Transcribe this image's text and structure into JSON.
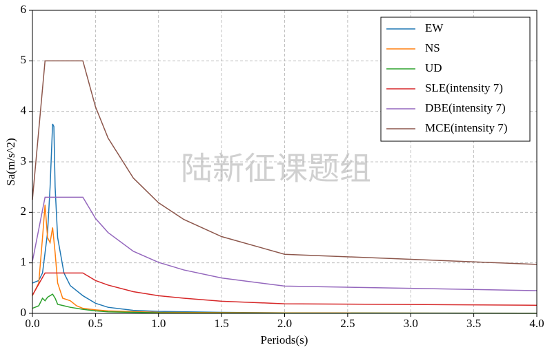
{
  "chart_data": {
    "type": "line",
    "xlabel": "Periods(s)",
    "ylabel": "Sa(m/s^2)",
    "annotation": "陆新征课题组",
    "xlim": [
      0,
      4
    ],
    "ylim": [
      0,
      6
    ],
    "xticks": [
      {
        "value": 0,
        "label": "0.0"
      },
      0.5,
      {
        "value": 1,
        "label": "1.0"
      },
      1.5,
      {
        "value": 2,
        "label": "2.0"
      },
      2.5,
      {
        "value": 3,
        "label": "3.0"
      },
      3.5,
      {
        "value": 4,
        "label": "4.0"
      }
    ],
    "yticks": [
      0,
      1,
      2,
      3,
      4,
      5,
      6
    ],
    "grid": true,
    "legend": "upper right",
    "series": [
      {
        "name": "EW",
        "color": "#1f77b4",
        "x": [
          0,
          0.05,
          0.08,
          0.1,
          0.12,
          0.14,
          0.16,
          0.17,
          0.18,
          0.2,
          0.25,
          0.3,
          0.4,
          0.5,
          0.6,
          0.8,
          1.0,
          1.5,
          2.0,
          3.0,
          4.0
        ],
        "values": [
          0.6,
          0.65,
          0.8,
          1.2,
          1.6,
          2.5,
          3.75,
          3.7,
          2.5,
          1.5,
          0.8,
          0.55,
          0.35,
          0.2,
          0.12,
          0.06,
          0.04,
          0.02,
          0.01,
          0.005,
          0.003
        ]
      },
      {
        "name": "NS",
        "color": "#ff7f0e",
        "x": [
          0,
          0.05,
          0.08,
          0.1,
          0.12,
          0.14,
          0.16,
          0.18,
          0.2,
          0.24,
          0.3,
          0.35,
          0.4,
          0.5,
          0.6,
          1.0,
          2.0,
          4.0
        ],
        "values": [
          0.35,
          0.6,
          1.5,
          2.15,
          1.5,
          1.4,
          1.7,
          1.2,
          0.6,
          0.3,
          0.25,
          0.15,
          0.1,
          0.07,
          0.05,
          0.02,
          0.01,
          0.003
        ]
      },
      {
        "name": "UD",
        "color": "#2ca02c",
        "x": [
          0,
          0.05,
          0.08,
          0.1,
          0.12,
          0.14,
          0.16,
          0.18,
          0.2,
          0.25,
          0.3,
          0.4,
          0.5,
          0.6,
          1.0,
          2.0,
          4.0
        ],
        "values": [
          0.1,
          0.15,
          0.3,
          0.25,
          0.32,
          0.35,
          0.38,
          0.3,
          0.18,
          0.15,
          0.12,
          0.08,
          0.05,
          0.03,
          0.01,
          0.005,
          0.002
        ]
      },
      {
        "name": "SLE(intensity 7)",
        "color": "#d62728",
        "x": [
          0,
          0.1,
          0.4,
          0.5,
          0.6,
          0.8,
          1.0,
          1.2,
          1.5,
          2.0,
          4.0
        ],
        "values": [
          0.36,
          0.8,
          0.8,
          0.65,
          0.56,
          0.43,
          0.35,
          0.3,
          0.24,
          0.19,
          0.16
        ]
      },
      {
        "name": "DBE(intensity 7)",
        "color": "#9467bd",
        "x": [
          0,
          0.1,
          0.4,
          0.5,
          0.6,
          0.8,
          1.0,
          1.2,
          1.5,
          2.0,
          4.0
        ],
        "values": [
          1.03,
          2.3,
          2.3,
          1.88,
          1.6,
          1.23,
          1.01,
          0.86,
          0.7,
          0.54,
          0.45
        ]
      },
      {
        "name": "MCE(intensity 7)",
        "color": "#8c564b",
        "x": [
          0,
          0.1,
          0.4,
          0.5,
          0.6,
          0.8,
          1.0,
          1.2,
          1.5,
          2.0,
          4.0
        ],
        "values": [
          2.25,
          5,
          5,
          4.09,
          3.47,
          2.68,
          2.19,
          1.86,
          1.52,
          1.17,
          0.97
        ]
      }
    ]
  }
}
